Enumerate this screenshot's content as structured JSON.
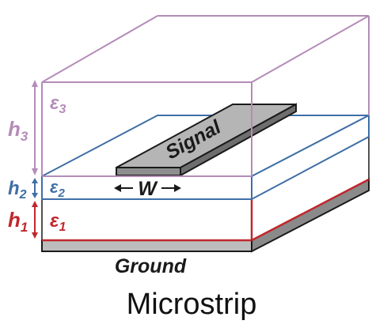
{
  "title": "Microstrip",
  "labels": {
    "signal": "Signal",
    "width": "W",
    "ground": "Ground",
    "h3": "h",
    "h3_sub": "3",
    "h2": "h",
    "h2_sub": "2",
    "h1": "h",
    "h1_sub": "1",
    "eps3": "ε",
    "eps3_sub": "3",
    "eps2": "ε",
    "eps2_sub": "2",
    "eps1": "ε",
    "eps1_sub": "1",
    "left_arrow": "←",
    "right_arrow": "→"
  },
  "colors": {
    "region3": "#b48cb8",
    "region2": "#3f6fa6",
    "region1": "#c0272d",
    "conductor_top": "#b5b5b5",
    "conductor_side": "#7d7d7d",
    "outline": "#1a1a1a"
  }
}
